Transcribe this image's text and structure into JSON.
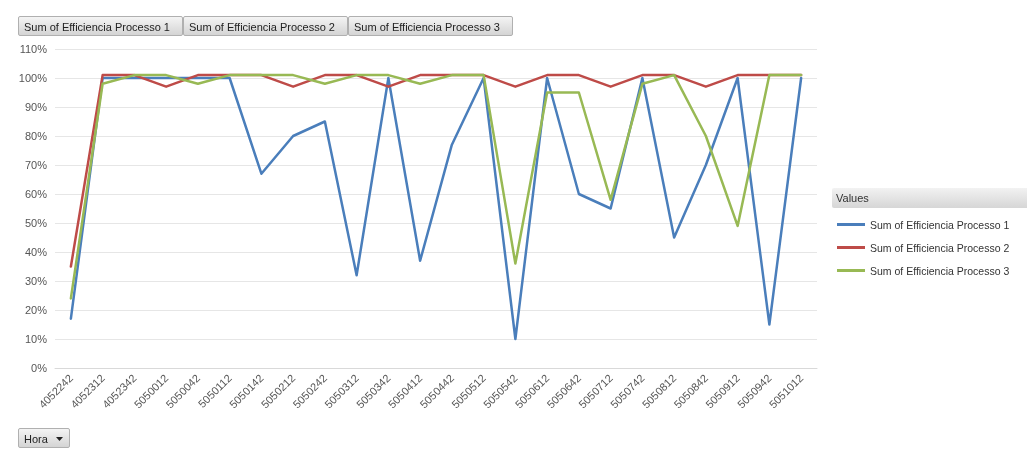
{
  "chart_data": {
    "type": "line",
    "categories": [
      "4052242",
      "4052312",
      "4052342",
      "5050012",
      "5050042",
      "5050112",
      "5050142",
      "5050212",
      "5050242",
      "5050312",
      "5050342",
      "5050412",
      "5050442",
      "5050512",
      "5050542",
      "5050612",
      "5050642",
      "5050712",
      "5050742",
      "5050812",
      "5050842",
      "5050912",
      "5050942",
      "5051012"
    ],
    "series": [
      {
        "name": "Sum of Efficiencia Processo 1",
        "color": "#4a7ebb",
        "values": [
          17,
          100,
          100,
          100,
          100,
          100,
          67,
          80,
          85,
          32,
          100,
          37,
          77,
          100,
          10,
          100,
          60,
          55,
          100,
          45,
          70,
          100,
          15,
          100
        ]
      },
      {
        "name": "Sum of Efficiencia Processo 2",
        "color": "#be4b48",
        "values": [
          35,
          101,
          101,
          97,
          101,
          101,
          101,
          97,
          101,
          101,
          97,
          101,
          101,
          101,
          97,
          101,
          101,
          97,
          101,
          101,
          97,
          101,
          101,
          101
        ]
      },
      {
        "name": "Sum of Efficiencia Processo 3",
        "color": "#98b954",
        "values": [
          24,
          98,
          101,
          101,
          98,
          101,
          101,
          101,
          98,
          101,
          101,
          98,
          101,
          101,
          36,
          95,
          95,
          58,
          98,
          101,
          80,
          49,
          101,
          101
        ]
      }
    ],
    "ylim": [
      0,
      110
    ],
    "yticks": [
      {
        "value": 0,
        "label": "0%"
      },
      {
        "value": 10,
        "label": "10%"
      },
      {
        "value": 20,
        "label": "20%"
      },
      {
        "value": 30,
        "label": "30%"
      },
      {
        "value": 40,
        "label": "40%"
      },
      {
        "value": 50,
        "label": "50%"
      },
      {
        "value": 60,
        "label": "60%"
      },
      {
        "value": 70,
        "label": "70%"
      },
      {
        "value": 80,
        "label": "80%"
      },
      {
        "value": 90,
        "label": "90%"
      },
      {
        "value": 100,
        "label": "100%"
      },
      {
        "value": 110,
        "label": "110%"
      }
    ],
    "grid": "y",
    "legend": "right",
    "legend_title": "Values",
    "marker": "none",
    "line_style": "solid",
    "annotations": [
      "Sum of Efficiencia Processo 1",
      "Sum of Efficiencia Processo 2",
      "Sum of Efficiencia Processo 3",
      "Hora"
    ]
  }
}
